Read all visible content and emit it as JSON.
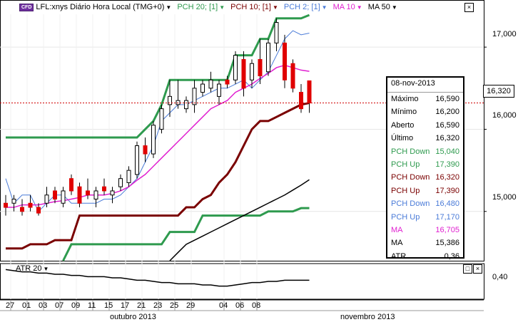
{
  "header": {
    "badge": "CFD",
    "symbol": "LFL:xnys Diário Hora Local (TMG+0)",
    "indicators": [
      {
        "label": "PCH 20; [1]",
        "color": "#2e9a4e"
      },
      {
        "label": "PCH 10; [1]",
        "color": "#7a0000"
      },
      {
        "label": "PCH 2; [1]",
        "color": "#4a7bd8"
      },
      {
        "label": "MA 10",
        "color": "#e020d0"
      },
      {
        "label": "MA 50",
        "color": "#000000"
      }
    ]
  },
  "price_tag": "16,320",
  "y_axis_labels": [
    "17,000",
    "16,000",
    "15,000"
  ],
  "sub_y_label": "0,40",
  "sub_indicator": "ATR 20",
  "x_axis_labels": [
    "27",
    "01",
    "03",
    "07",
    "09",
    "11",
    "15",
    "17",
    "21",
    "23",
    "25",
    "29",
    "04",
    "06",
    "08"
  ],
  "month_labels": [
    "outubro 2013",
    "novembro 2013"
  ],
  "info_box": {
    "date": "08-nov-2013",
    "rows": [
      {
        "label": "Máximo",
        "value": "16,590",
        "color": "#000000"
      },
      {
        "label": "Mínimo",
        "value": "16,200",
        "color": "#000000"
      },
      {
        "label": "Aberto",
        "value": "16,590",
        "color": "#000000"
      },
      {
        "label": "Último",
        "value": "16,320",
        "color": "#000000"
      },
      {
        "label": "PCH Down",
        "value": "15,040",
        "color": "#2e9a4e"
      },
      {
        "label": "PCH Up",
        "value": "17,390",
        "color": "#2e9a4e"
      },
      {
        "label": "PCH Down",
        "value": "16,320",
        "color": "#7a0000"
      },
      {
        "label": "PCH Up",
        "value": "17,390",
        "color": "#7a0000"
      },
      {
        "label": "PCH Down",
        "value": "16,480",
        "color": "#4a7bd8"
      },
      {
        "label": "PCH Up",
        "value": "17,170",
        "color": "#4a7bd8"
      },
      {
        "label": "MA",
        "value": "16,705",
        "color": "#e020d0"
      },
      {
        "label": "MA",
        "value": "15,386",
        "color": "#000000"
      },
      {
        "label": "ATR",
        "value": "0,36",
        "color": "#000000"
      }
    ]
  },
  "chart_data": {
    "type": "line",
    "title": "LFL:xnys Diário Hora Local (TMG+0)",
    "ylim": [
      14.4,
      17.4
    ],
    "last_price": 16.32,
    "x_positions_note": "bars indexed by trading day",
    "candles": [
      {
        "o": 15.1,
        "h": 15.2,
        "l": 14.95,
        "c": 15.05
      },
      {
        "o": 15.1,
        "h": 15.2,
        "l": 15.0,
        "c": 15.15
      },
      {
        "o": 15.05,
        "h": 15.15,
        "l": 14.95,
        "c": 15.0
      },
      {
        "o": 15.1,
        "h": 15.2,
        "l": 15.0,
        "c": 15.05
      },
      {
        "o": 15.05,
        "h": 15.1,
        "l": 14.95,
        "c": 14.98
      },
      {
        "o": 15.1,
        "h": 15.3,
        "l": 15.05,
        "c": 15.2
      },
      {
        "o": 15.25,
        "h": 15.3,
        "l": 15.1,
        "c": 15.15
      },
      {
        "o": 15.1,
        "h": 15.3,
        "l": 15.05,
        "c": 15.25
      },
      {
        "o": 15.4,
        "h": 15.45,
        "l": 15.2,
        "c": 15.25
      },
      {
        "o": 15.3,
        "h": 15.35,
        "l": 15.05,
        "c": 15.1
      },
      {
        "o": 15.25,
        "h": 15.4,
        "l": 15.15,
        "c": 15.2
      },
      {
        "o": 15.15,
        "h": 15.3,
        "l": 15.05,
        "c": 15.25
      },
      {
        "o": 15.3,
        "h": 15.4,
        "l": 15.2,
        "c": 15.25
      },
      {
        "o": 15.2,
        "h": 15.3,
        "l": 15.1,
        "c": 15.25
      },
      {
        "o": 15.3,
        "h": 15.45,
        "l": 15.25,
        "c": 15.4
      },
      {
        "o": 15.35,
        "h": 15.55,
        "l": 15.3,
        "c": 15.5
      },
      {
        "o": 15.45,
        "h": 15.85,
        "l": 15.4,
        "c": 15.8
      },
      {
        "o": 15.8,
        "h": 15.9,
        "l": 15.6,
        "c": 15.7
      },
      {
        "o": 15.7,
        "h": 16.1,
        "l": 15.65,
        "c": 16.05
      },
      {
        "o": 16.0,
        "h": 16.3,
        "l": 15.95,
        "c": 16.25
      },
      {
        "o": 16.3,
        "h": 16.6,
        "l": 16.15,
        "c": 16.4
      },
      {
        "o": 16.3,
        "h": 16.6,
        "l": 16.25,
        "c": 16.35
      },
      {
        "o": 16.25,
        "h": 16.4,
        "l": 16.2,
        "c": 16.35
      },
      {
        "o": 16.3,
        "h": 16.6,
        "l": 16.2,
        "c": 16.5
      },
      {
        "o": 16.45,
        "h": 16.6,
        "l": 16.4,
        "c": 16.55
      },
      {
        "o": 16.5,
        "h": 16.7,
        "l": 16.45,
        "c": 16.6
      },
      {
        "o": 16.4,
        "h": 16.6,
        "l": 16.3,
        "c": 16.55
      },
      {
        "o": 16.6,
        "h": 16.65,
        "l": 16.5,
        "c": 16.55
      },
      {
        "o": 16.6,
        "h": 16.95,
        "l": 16.55,
        "c": 16.9
      },
      {
        "o": 16.85,
        "h": 16.95,
        "l": 16.4,
        "c": 16.5
      },
      {
        "o": 16.6,
        "h": 16.85,
        "l": 16.5,
        "c": 16.8
      },
      {
        "o": 16.85,
        "h": 17.1,
        "l": 16.55,
        "c": 16.65
      },
      {
        "o": 16.7,
        "h": 17.1,
        "l": 16.65,
        "c": 17.05
      },
      {
        "o": 17.05,
        "h": 17.35,
        "l": 16.95,
        "c": 17.3
      },
      {
        "o": 17.05,
        "h": 17.15,
        "l": 16.5,
        "c": 16.6
      },
      {
        "o": 16.8,
        "h": 16.85,
        "l": 16.45,
        "c": 16.5
      },
      {
        "o": 16.45,
        "h": 16.55,
        "l": 16.2,
        "c": 16.25
      },
      {
        "o": 16.59,
        "h": 16.59,
        "l": 16.2,
        "c": 16.32
      }
    ],
    "series": [
      {
        "name": "PCH Up 20",
        "color": "#2e9a4e",
        "values": [
          15.9,
          15.9,
          15.9,
          15.9,
          15.9,
          15.9,
          15.9,
          15.9,
          15.9,
          15.9,
          15.9,
          15.9,
          15.9,
          15.9,
          15.9,
          15.9,
          15.9,
          16.0,
          16.1,
          16.3,
          16.6,
          16.6,
          16.6,
          16.6,
          16.6,
          16.6,
          16.6,
          16.6,
          16.9,
          16.9,
          16.9,
          17.1,
          17.1,
          17.35,
          17.35,
          17.35,
          17.35,
          17.39
        ]
      },
      {
        "name": "PCH Down 20",
        "color": "#2e9a4e",
        "values": [
          null,
          null,
          null,
          null,
          null,
          null,
          null,
          14.4,
          14.6,
          14.6,
          14.6,
          14.6,
          14.6,
          14.6,
          14.6,
          14.6,
          14.6,
          14.6,
          14.6,
          14.6,
          14.75,
          14.75,
          14.75,
          14.75,
          14.95,
          14.95,
          14.95,
          14.95,
          14.95,
          14.95,
          14.95,
          14.95,
          15.0,
          15.0,
          15.0,
          15.0,
          15.04,
          15.04
        ]
      },
      {
        "name": "PCH Down 10",
        "color": "#7a0000",
        "values": [
          14.55,
          14.55,
          14.55,
          14.6,
          14.6,
          14.6,
          14.65,
          14.65,
          14.65,
          14.95,
          14.95,
          14.95,
          14.95,
          14.95,
          14.95,
          14.95,
          14.95,
          14.95,
          14.95,
          14.95,
          14.95,
          14.95,
          15.05,
          15.05,
          15.15,
          15.2,
          15.35,
          15.45,
          15.6,
          15.8,
          16.0,
          16.1,
          16.1,
          16.15,
          16.2,
          16.25,
          16.3,
          16.32
        ]
      },
      {
        "name": "PCH 2",
        "color": "#4a7bd8",
        "values": [
          15.4,
          15.1,
          15.2,
          15.2,
          15.0,
          15.1,
          15.2,
          15.2,
          15.1,
          15.1,
          15.1,
          15.1,
          15.15,
          15.15,
          15.2,
          15.3,
          15.4,
          15.6,
          15.8,
          16.1,
          16.2,
          16.3,
          16.3,
          16.35,
          16.4,
          16.45,
          16.5,
          16.5,
          16.55,
          16.6,
          16.5,
          16.6,
          16.7,
          16.9,
          17.1,
          17.2,
          17.15,
          17.17
        ]
      },
      {
        "name": "MA 10",
        "color": "#e020d0",
        "values": [
          15.05,
          15.05,
          15.08,
          15.08,
          15.08,
          15.1,
          15.12,
          15.13,
          15.15,
          15.17,
          15.2,
          15.2,
          15.2,
          15.22,
          15.25,
          15.3,
          15.38,
          15.45,
          15.55,
          15.65,
          15.75,
          15.85,
          15.95,
          16.05,
          16.15,
          16.25,
          16.3,
          16.35,
          16.45,
          16.5,
          16.55,
          16.62,
          16.68,
          16.75,
          16.78,
          16.75,
          16.72,
          16.705
        ]
      },
      {
        "name": "MA 50",
        "color": "#000000",
        "values": [
          null,
          null,
          null,
          null,
          null,
          null,
          null,
          null,
          null,
          null,
          null,
          null,
          null,
          null,
          null,
          null,
          null,
          null,
          null,
          null,
          14.4,
          14.5,
          14.6,
          14.65,
          14.7,
          14.75,
          14.8,
          14.85,
          14.9,
          14.95,
          15.0,
          15.05,
          15.1,
          15.15,
          15.2,
          15.26,
          15.32,
          15.386
        ]
      }
    ],
    "atr": {
      "ylim": [
        0.2,
        0.5
      ],
      "values": [
        0.45,
        0.44,
        0.43,
        0.43,
        0.42,
        0.42,
        0.41,
        0.41,
        0.4,
        0.4,
        0.39,
        0.39,
        0.39,
        0.38,
        0.38,
        0.37,
        0.36,
        0.36,
        0.35,
        0.34,
        0.34,
        0.33,
        0.33,
        0.33,
        0.32,
        0.32,
        0.31,
        0.31,
        0.32,
        0.33,
        0.34,
        0.34,
        0.35,
        0.35,
        0.36,
        0.36,
        0.36,
        0.36
      ]
    }
  }
}
